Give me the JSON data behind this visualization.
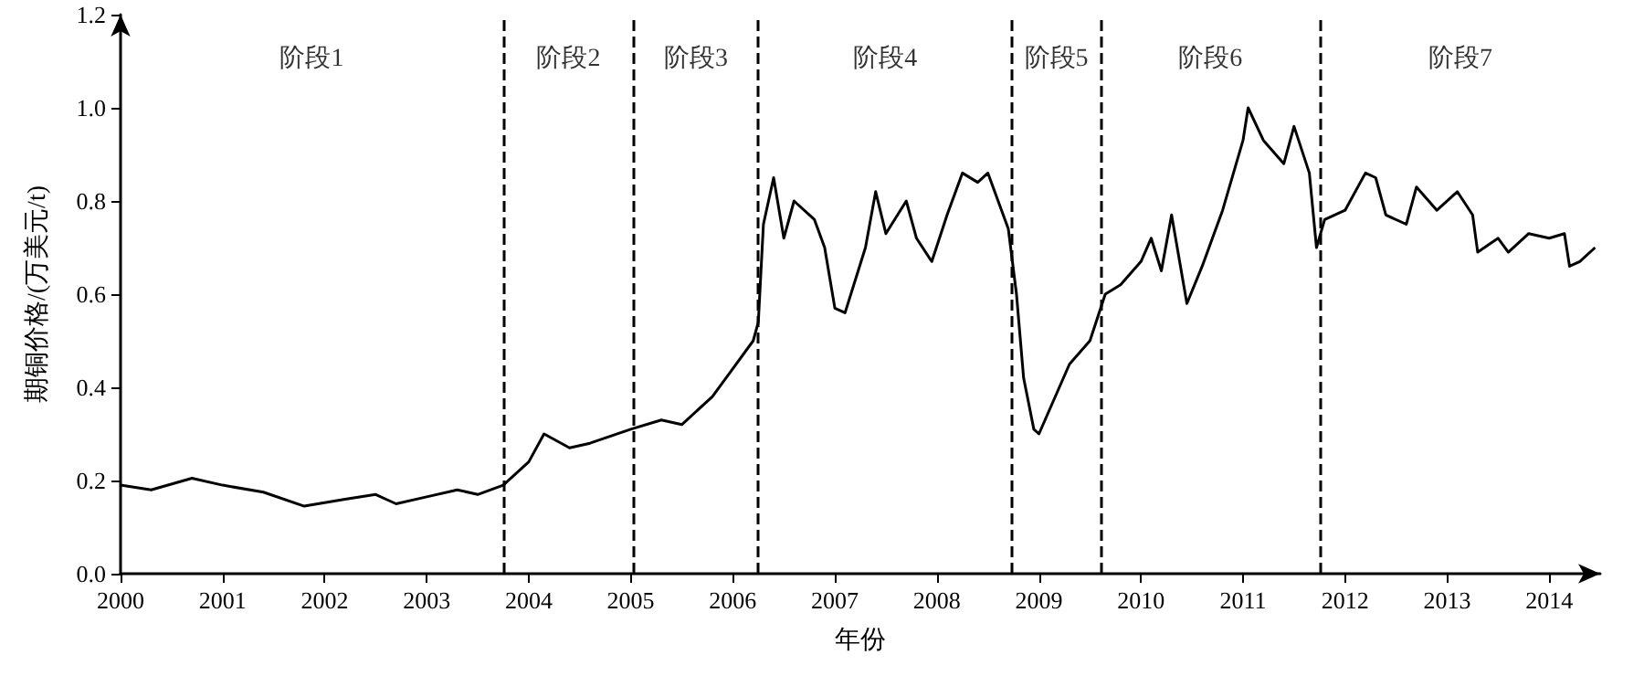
{
  "chart_data": {
    "type": "line",
    "xlabel": "年份",
    "ylabel": "期铜价格/(万美元/t)",
    "x": [
      2000,
      2000.3,
      2000.7,
      2001,
      2001.4,
      2001.8,
      2002.2,
      2002.5,
      2002.7,
      2003,
      2003.3,
      2003.5,
      2003.75,
      2004,
      2004.15,
      2004.4,
      2004.6,
      2005,
      2005.3,
      2005.5,
      2005.8,
      2006,
      2006.2,
      2006.25,
      2006.3,
      2006.4,
      2006.5,
      2006.6,
      2006.8,
      2006.9,
      2007,
      2007.1,
      2007.3,
      2007.4,
      2007.5,
      2007.7,
      2007.8,
      2007.95,
      2008.1,
      2008.25,
      2008.4,
      2008.5,
      2008.6,
      2008.7,
      2008.78,
      2008.85,
      2008.95,
      2009,
      2009.1,
      2009.3,
      2009.5,
      2009.65,
      2009.8,
      2010,
      2010.1,
      2010.2,
      2010.3,
      2010.45,
      2010.6,
      2010.8,
      2011,
      2011.05,
      2011.2,
      2011.4,
      2011.5,
      2011.65,
      2011.72,
      2011.8,
      2012,
      2012.2,
      2012.3,
      2012.4,
      2012.6,
      2012.7,
      2012.9,
      2013.1,
      2013.25,
      2013.3,
      2013.5,
      2013.6,
      2013.8,
      2014,
      2014.15,
      2014.2,
      2014.3,
      2014.45
    ],
    "series": [
      {
        "color": "#000000",
        "values": [
          0.19,
          0.18,
          0.205,
          0.19,
          0.175,
          0.145,
          0.16,
          0.17,
          0.15,
          0.165,
          0.18,
          0.17,
          0.19,
          0.24,
          0.3,
          0.27,
          0.28,
          0.31,
          0.33,
          0.32,
          0.38,
          0.44,
          0.5,
          0.54,
          0.75,
          0.85,
          0.72,
          0.8,
          0.76,
          0.7,
          0.57,
          0.56,
          0.7,
          0.82,
          0.73,
          0.8,
          0.72,
          0.67,
          0.77,
          0.86,
          0.84,
          0.86,
          0.8,
          0.74,
          0.6,
          0.42,
          0.31,
          0.3,
          0.35,
          0.45,
          0.5,
          0.6,
          0.62,
          0.67,
          0.72,
          0.65,
          0.77,
          0.58,
          0.66,
          0.78,
          0.93,
          1.0,
          0.93,
          0.88,
          0.96,
          0.86,
          0.7,
          0.76,
          0.78,
          0.86,
          0.85,
          0.77,
          0.75,
          0.83,
          0.78,
          0.82,
          0.77,
          0.69,
          0.72,
          0.69,
          0.73,
          0.72,
          0.73,
          0.66,
          0.67,
          0.7
        ]
      }
    ],
    "xlim": [
      2000,
      2014.5
    ],
    "xticks": [
      2000,
      2001,
      2002,
      2003,
      2004,
      2005,
      2006,
      2007,
      2008,
      2009,
      2010,
      2011,
      2012,
      2013,
      2014
    ],
    "ylim": [
      0,
      1.2
    ],
    "yticks": [
      {
        "value": 0,
        "label": "0.0"
      },
      {
        "value": 0.2,
        "label": "0.2"
      },
      {
        "value": 0.4,
        "label": "0.4"
      },
      {
        "value": 0.6,
        "label": "0.6"
      },
      {
        "value": 0.8,
        "label": "0.8"
      },
      {
        "value": 1,
        "label": "1.0"
      },
      {
        "value": 1.2,
        "label": "1.2"
      }
    ],
    "ref_lines": [
      {
        "axis": "x",
        "value": 2003.75,
        "color": "#000000",
        "line_style": "dashed"
      },
      {
        "axis": "x",
        "value": 2005.03,
        "color": "#000000",
        "line_style": "dashed"
      },
      {
        "axis": "x",
        "value": 2006.25,
        "color": "#000000",
        "line_style": "dashed"
      },
      {
        "axis": "x",
        "value": 2008.74,
        "color": "#000000",
        "line_style": "dashed"
      },
      {
        "axis": "x",
        "value": 2009.6,
        "color": "#000000",
        "line_style": "dashed"
      },
      {
        "axis": "x",
        "value": 2011.76,
        "color": "#000000",
        "line_style": "dashed"
      }
    ],
    "annotations": [
      "阶段1",
      "阶段2",
      "阶段3",
      "阶段4",
      "阶段5",
      "阶段6",
      "阶段7"
    ],
    "grid": false,
    "marker": "none",
    "line_style": "solid"
  }
}
